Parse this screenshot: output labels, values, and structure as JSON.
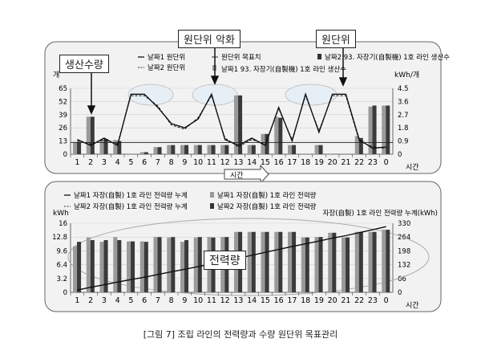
{
  "callouts": {
    "production": "생산수량",
    "worse": "원단위 악화",
    "unit": "원단위",
    "power": "전력량"
  },
  "caption": "[그림 7] 조립 라인의 전력량과 수량 원단위 목표관리",
  "arrow_label": "시간",
  "chart_data": [
    {
      "type": "bar",
      "ylabel": "개",
      "y2label": "kWh/개",
      "xlabel": "시간",
      "ylim": [
        0,
        65
      ],
      "y2lim": [
        0,
        4.5
      ],
      "yticks": [
        "0",
        "13",
        "26",
        "39",
        "52",
        "65"
      ],
      "y2ticks": [
        "0",
        "0.9",
        "1.8",
        "2.7",
        "3.6",
        "4.5"
      ],
      "categories": [
        "1",
        "2",
        "3",
        "4",
        "5",
        "6",
        "7",
        "8",
        "9",
        "10",
        "11",
        "12",
        "13",
        "14",
        "15",
        "16",
        "17",
        "18",
        "19",
        "20",
        "21",
        "22",
        "23",
        "0"
      ],
      "legend": [
        "날짜1 원단위",
        "날짜2 원단위",
        "원단위 목표치",
        "날짜1 93. 자장기(自製機) 1호 라인 생산수",
        "날짜2 93. 자장기(自製機) 1호 라인 생산수"
      ],
      "series": [
        {
          "values": [
            12,
            37,
            14,
            14,
            0,
            2,
            7,
            9,
            9,
            9,
            9,
            9,
            58,
            9,
            20,
            37,
            9,
            0,
            9,
            0,
            0,
            18,
            47,
            48
          ]
        },
        {
          "values": [
            12,
            37,
            15,
            13,
            0,
            2,
            7,
            9,
            9,
            9,
            9,
            9,
            58,
            9,
            20,
            36,
            9,
            0,
            9,
            0,
            0,
            16,
            48,
            48
          ]
        }
      ],
      "lines": [
        {
          "values": [
            1.0,
            0.6,
            1.1,
            0.6,
            4.1,
            4.1,
            3.2,
            2.1,
            1.8,
            2.4,
            4.1,
            1.0,
            0.6,
            1.1,
            0.6,
            3.2,
            0.9,
            4.1,
            1.5,
            4.1,
            4.1,
            1.0,
            0.4,
            0.5
          ]
        },
        {
          "values": [
            0.9,
            0.7,
            1.0,
            0.7,
            4.0,
            4.0,
            3.3,
            2.0,
            1.7,
            2.5,
            4.0,
            1.1,
            0.5,
            1.0,
            0.7,
            3.1,
            1.0,
            4.0,
            1.6,
            4.0,
            4.0,
            0.9,
            0.5,
            0.4
          ]
        }
      ],
      "target": 0.8
    },
    {
      "type": "bar",
      "ylabel": "kWh",
      "y2label": "자장(自製) 1호 라인 전력량 누계(kWh)",
      "xlabel": "시간",
      "ylim": [
        0,
        16
      ],
      "y2lim": [
        0,
        330
      ],
      "yticks": [
        "0",
        "3.2",
        "6.4",
        "9.6",
        "12.8",
        "16"
      ],
      "y2ticks": [
        "0",
        "66",
        "132",
        "198",
        "264",
        "330"
      ],
      "categories": [
        "1",
        "2",
        "3",
        "4",
        "5",
        "6",
        "7",
        "8",
        "9",
        "10",
        "11",
        "12",
        "13",
        "14",
        "15",
        "16",
        "17",
        "18",
        "19",
        "20",
        "21",
        "22",
        "23",
        "0"
      ],
      "legend": [
        "날짜1 자장(自製) 1호 라인 전력량 누계",
        "날짜1 자장(自製) 1호 라인 전력량",
        "날짜2 자장(自製) 1호 라인 전력량 누계",
        "날짜2 자장(自製) 1호 라인 전력량"
      ],
      "series": [
        {
          "values": [
            10.7,
            12.7,
            11.7,
            12.8,
            11.8,
            11.8,
            12.8,
            12.7,
            11.7,
            12.7,
            12.8,
            12.8,
            14,
            14,
            14,
            14,
            14,
            12.7,
            12.8,
            13.8,
            12.7,
            14,
            14,
            14.5
          ]
        },
        {
          "values": [
            11.7,
            12.1,
            12.1,
            12.1,
            11.8,
            11.7,
            12.8,
            12.8,
            12.1,
            12.8,
            12.7,
            12.8,
            14,
            14,
            14,
            14,
            14,
            12.7,
            12.8,
            13.8,
            12.7,
            14,
            14,
            14.5
          ]
        }
      ],
      "lines": [
        {
          "values": [
            11,
            24,
            36,
            49,
            61,
            72,
            85,
            98,
            110,
            123,
            136,
            149,
            163,
            177,
            191,
            205,
            219,
            232,
            245,
            259,
            271,
            285,
            299,
            314
          ]
        },
        {
          "values": [
            12,
            24,
            36,
            48,
            60,
            72,
            85,
            98,
            110,
            123,
            136,
            149,
            163,
            177,
            191,
            205,
            219,
            232,
            245,
            259,
            271,
            285,
            299,
            314
          ]
        }
      ]
    }
  ]
}
